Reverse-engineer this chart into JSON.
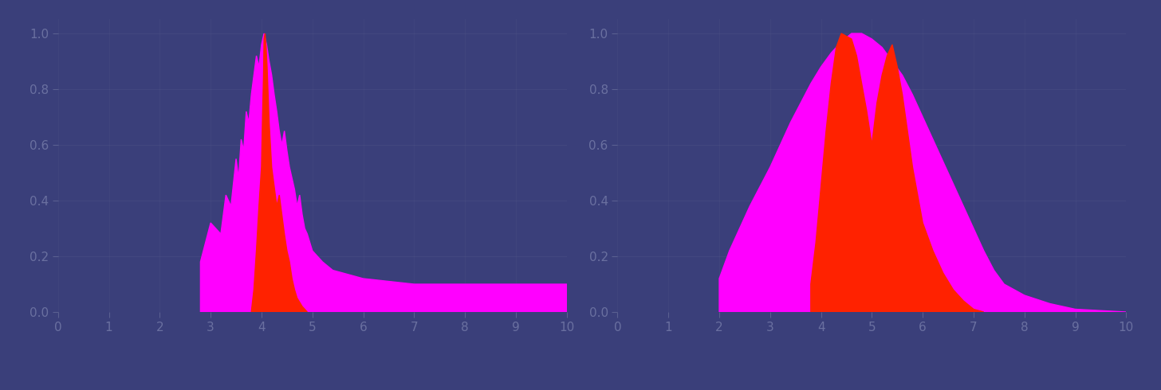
{
  "bg_color": "#3a3f7a",
  "fill_color_magenta": "#ff00ff",
  "fill_color_red": "#ff2200",
  "axis_color": "#5a6090",
  "text_color": "#6a70a0",
  "figsize": [
    14.56,
    4.9
  ],
  "dpi": 100,
  "left_plot": {
    "magenta_poly": [
      [
        0.28,
        0.0
      ],
      [
        0.28,
        0.18
      ],
      [
        0.3,
        0.32
      ],
      [
        0.32,
        0.28
      ],
      [
        0.33,
        0.42
      ],
      [
        0.34,
        0.38
      ],
      [
        0.35,
        0.55
      ],
      [
        0.355,
        0.48
      ],
      [
        0.36,
        0.62
      ],
      [
        0.365,
        0.58
      ],
      [
        0.37,
        0.72
      ],
      [
        0.375,
        0.68
      ],
      [
        0.38,
        0.78
      ],
      [
        0.385,
        0.85
      ],
      [
        0.39,
        0.92
      ],
      [
        0.395,
        0.88
      ],
      [
        0.4,
        0.96
      ],
      [
        0.405,
        1.0
      ],
      [
        0.41,
        0.96
      ],
      [
        0.415,
        0.9
      ],
      [
        0.42,
        0.85
      ],
      [
        0.425,
        0.78
      ],
      [
        0.43,
        0.72
      ],
      [
        0.435,
        0.65
      ],
      [
        0.44,
        0.6
      ],
      [
        0.445,
        0.65
      ],
      [
        0.45,
        0.58
      ],
      [
        0.455,
        0.52
      ],
      [
        0.46,
        0.48
      ],
      [
        0.465,
        0.44
      ],
      [
        0.47,
        0.38
      ],
      [
        0.475,
        0.42
      ],
      [
        0.48,
        0.35
      ],
      [
        0.485,
        0.3
      ],
      [
        0.49,
        0.28
      ],
      [
        0.5,
        0.22
      ],
      [
        0.52,
        0.18
      ],
      [
        0.54,
        0.15
      ],
      [
        0.56,
        0.14
      ],
      [
        0.58,
        0.13
      ],
      [
        0.6,
        0.12
      ],
      [
        0.65,
        0.11
      ],
      [
        0.7,
        0.1
      ],
      [
        0.75,
        0.1
      ],
      [
        0.8,
        0.1
      ],
      [
        0.85,
        0.1
      ],
      [
        0.9,
        0.1
      ],
      [
        0.95,
        0.1
      ],
      [
        1.0,
        0.1
      ],
      [
        1.0,
        0.0
      ]
    ],
    "red_poly": [
      [
        0.38,
        0.0
      ],
      [
        0.385,
        0.08
      ],
      [
        0.39,
        0.22
      ],
      [
        0.395,
        0.38
      ],
      [
        0.4,
        0.52
      ],
      [
        0.402,
        0.7
      ],
      [
        0.404,
        0.85
      ],
      [
        0.405,
        0.98
      ],
      [
        0.407,
        1.0
      ],
      [
        0.409,
        0.95
      ],
      [
        0.411,
        0.88
      ],
      [
        0.413,
        0.78
      ],
      [
        0.415,
        0.68
      ],
      [
        0.42,
        0.52
      ],
      [
        0.425,
        0.45
      ],
      [
        0.43,
        0.38
      ],
      [
        0.435,
        0.42
      ],
      [
        0.44,
        0.35
      ],
      [
        0.445,
        0.28
      ],
      [
        0.45,
        0.22
      ],
      [
        0.455,
        0.18
      ],
      [
        0.46,
        0.12
      ],
      [
        0.465,
        0.08
      ],
      [
        0.47,
        0.05
      ],
      [
        0.48,
        0.02
      ],
      [
        0.49,
        0.0
      ]
    ]
  },
  "right_plot": {
    "magenta_poly": [
      [
        0.2,
        0.0
      ],
      [
        0.2,
        0.12
      ],
      [
        0.22,
        0.22
      ],
      [
        0.24,
        0.3
      ],
      [
        0.26,
        0.38
      ],
      [
        0.28,
        0.45
      ],
      [
        0.3,
        0.52
      ],
      [
        0.32,
        0.6
      ],
      [
        0.34,
        0.68
      ],
      [
        0.36,
        0.75
      ],
      [
        0.38,
        0.82
      ],
      [
        0.4,
        0.88
      ],
      [
        0.42,
        0.93
      ],
      [
        0.44,
        0.97
      ],
      [
        0.46,
        1.0
      ],
      [
        0.48,
        1.0
      ],
      [
        0.5,
        0.98
      ],
      [
        0.52,
        0.95
      ],
      [
        0.54,
        0.9
      ],
      [
        0.56,
        0.85
      ],
      [
        0.58,
        0.78
      ],
      [
        0.6,
        0.7
      ],
      [
        0.62,
        0.62
      ],
      [
        0.64,
        0.54
      ],
      [
        0.66,
        0.46
      ],
      [
        0.68,
        0.38
      ],
      [
        0.7,
        0.3
      ],
      [
        0.72,
        0.22
      ],
      [
        0.74,
        0.15
      ],
      [
        0.76,
        0.1
      ],
      [
        0.8,
        0.06
      ],
      [
        0.85,
        0.03
      ],
      [
        0.9,
        0.01
      ],
      [
        1.0,
        0.0
      ]
    ],
    "red_poly": [
      [
        0.38,
        0.0
      ],
      [
        0.38,
        0.1
      ],
      [
        0.39,
        0.25
      ],
      [
        0.4,
        0.45
      ],
      [
        0.41,
        0.65
      ],
      [
        0.42,
        0.82
      ],
      [
        0.43,
        0.95
      ],
      [
        0.44,
        1.0
      ],
      [
        0.46,
        0.98
      ],
      [
        0.47,
        0.92
      ],
      [
        0.48,
        0.82
      ],
      [
        0.49,
        0.72
      ],
      [
        0.5,
        0.6
      ],
      [
        0.51,
        0.75
      ],
      [
        0.52,
        0.85
      ],
      [
        0.53,
        0.92
      ],
      [
        0.54,
        0.96
      ],
      [
        0.55,
        0.88
      ],
      [
        0.56,
        0.78
      ],
      [
        0.57,
        0.65
      ],
      [
        0.58,
        0.52
      ],
      [
        0.59,
        0.42
      ],
      [
        0.6,
        0.32
      ],
      [
        0.62,
        0.22
      ],
      [
        0.64,
        0.14
      ],
      [
        0.66,
        0.08
      ],
      [
        0.68,
        0.04
      ],
      [
        0.7,
        0.01
      ],
      [
        0.72,
        0.0
      ]
    ]
  },
  "xtick_positions": [
    0.0,
    0.1,
    0.2,
    0.3,
    0.4,
    0.5,
    0.6,
    0.7,
    0.8,
    0.9,
    1.0
  ],
  "xtick_labels": [
    "0",
    "1",
    "2",
    "3",
    "4",
    "5",
    "6",
    "7",
    "8",
    "9",
    "10"
  ],
  "ytick_positions": [
    0.0,
    0.2,
    0.4,
    0.6,
    0.8,
    1.0
  ],
  "ytick_labels": [
    "0.0",
    "0.2",
    "0.4",
    "0.6",
    "0.8",
    "1.0"
  ]
}
